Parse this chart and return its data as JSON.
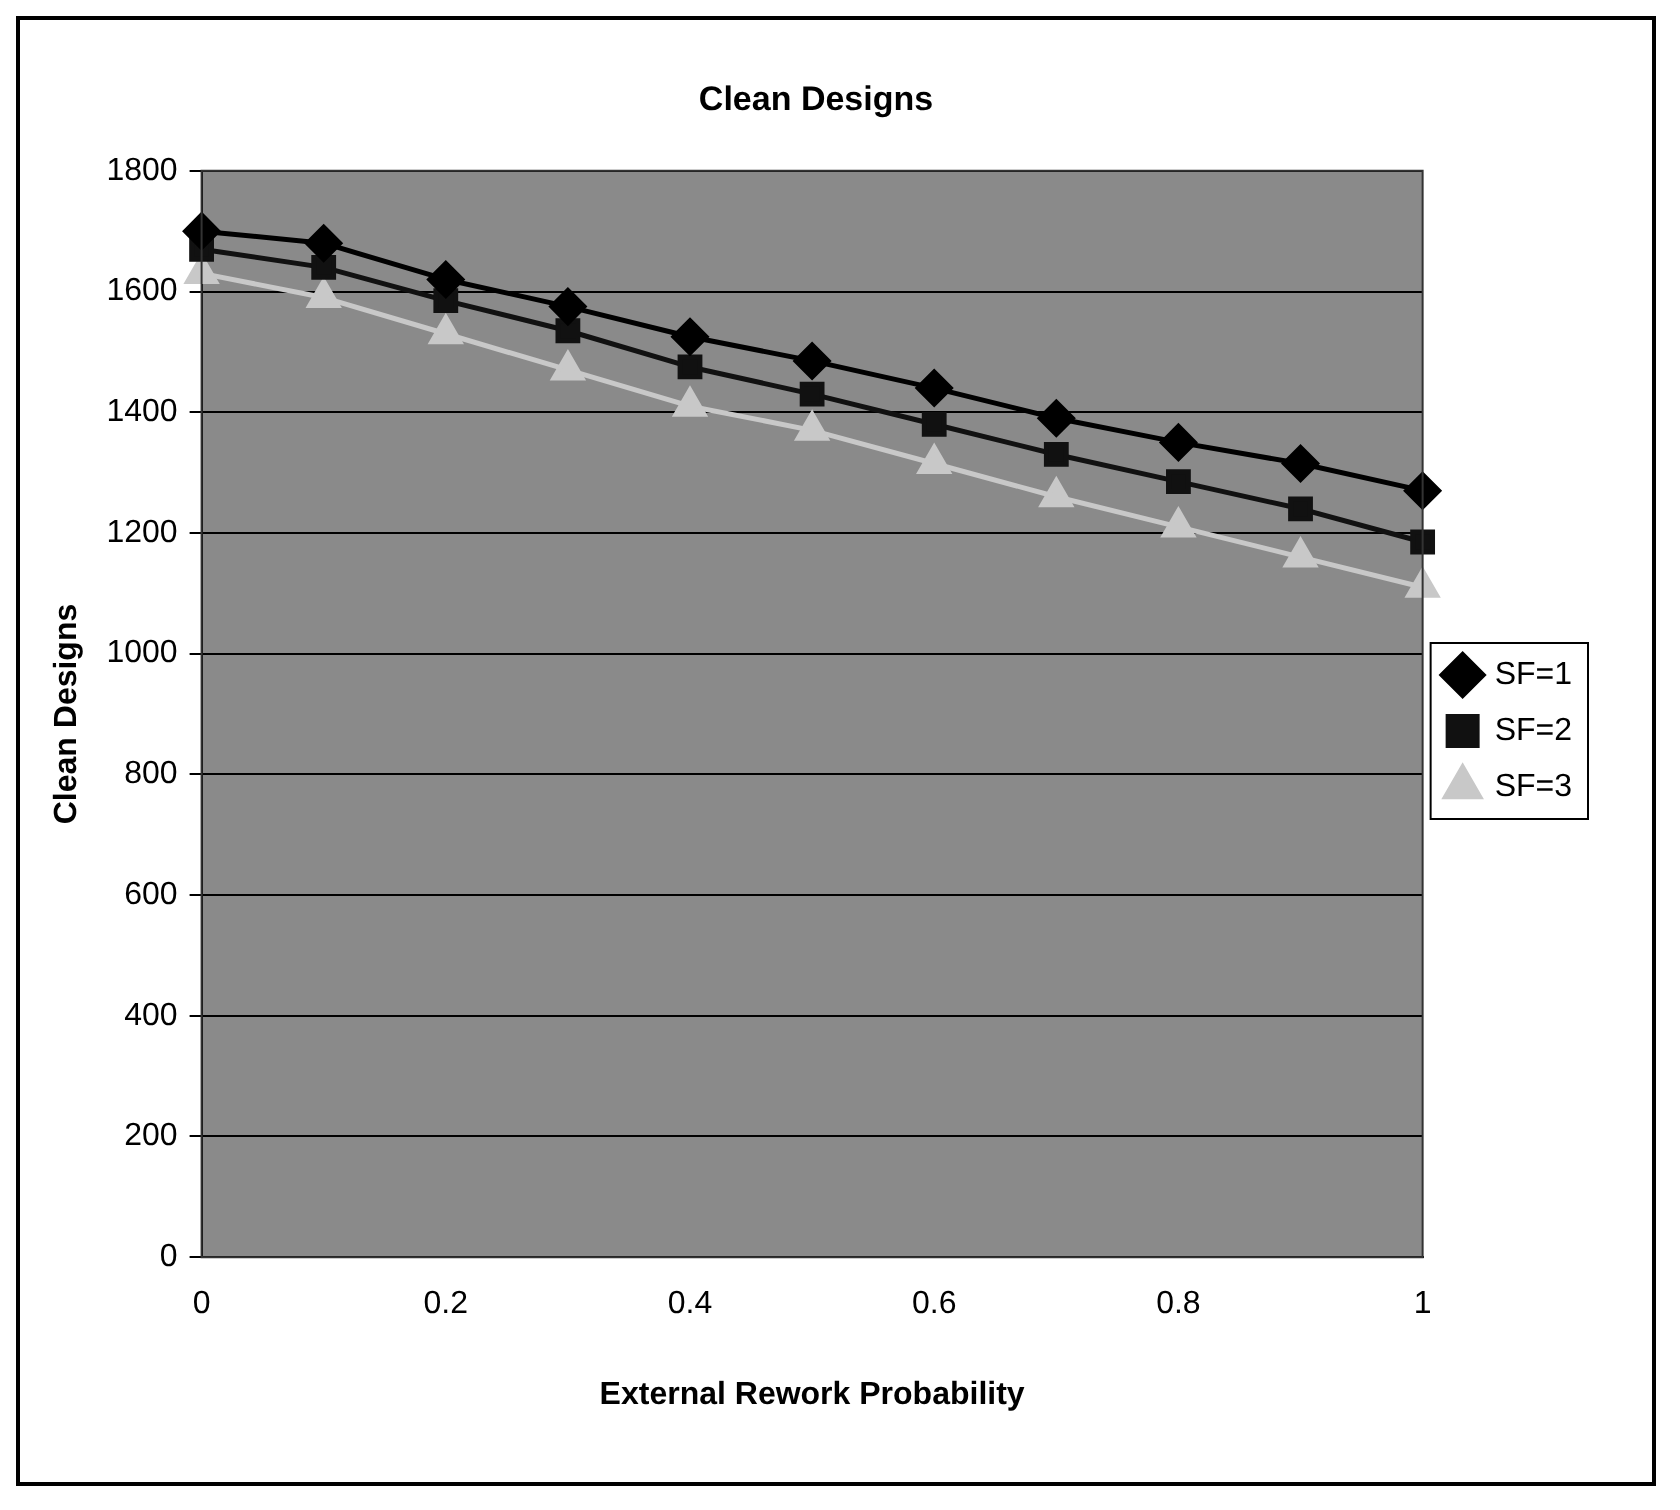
{
  "chart_data": {
    "type": "line",
    "title": "Clean Designs",
    "xlabel": "External Rework Probability",
    "ylabel": "Clean Designs",
    "x": [
      0,
      0.1,
      0.2,
      0.3,
      0.4,
      0.5,
      0.6,
      0.7,
      0.8,
      0.9,
      1
    ],
    "xlim": [
      0,
      1
    ],
    "xticks": [
      0,
      0.2,
      0.4,
      0.6,
      0.8,
      1
    ],
    "ylim": [
      0,
      1800
    ],
    "yticks": [
      0,
      200,
      400,
      600,
      800,
      1000,
      1200,
      1400,
      1600,
      1800
    ],
    "grid": "y",
    "legend": "right",
    "line_style": "solid",
    "series": [
      {
        "name": "SF=1",
        "color": "#000000",
        "marker": "diamond",
        "values": [
          1700,
          1680,
          1620,
          1575,
          1525,
          1485,
          1440,
          1390,
          1350,
          1315,
          1270
        ]
      },
      {
        "name": "SF=2",
        "color": "#111111",
        "marker": "square",
        "values": [
          1670,
          1640,
          1585,
          1535,
          1475,
          1430,
          1380,
          1330,
          1285,
          1240,
          1185
        ]
      },
      {
        "name": "SF=3",
        "color": "#c8c8c8",
        "marker": "triangle",
        "values": [
          1630,
          1590,
          1530,
          1470,
          1410,
          1370,
          1315,
          1260,
          1210,
          1160,
          1110
        ]
      }
    ]
  }
}
